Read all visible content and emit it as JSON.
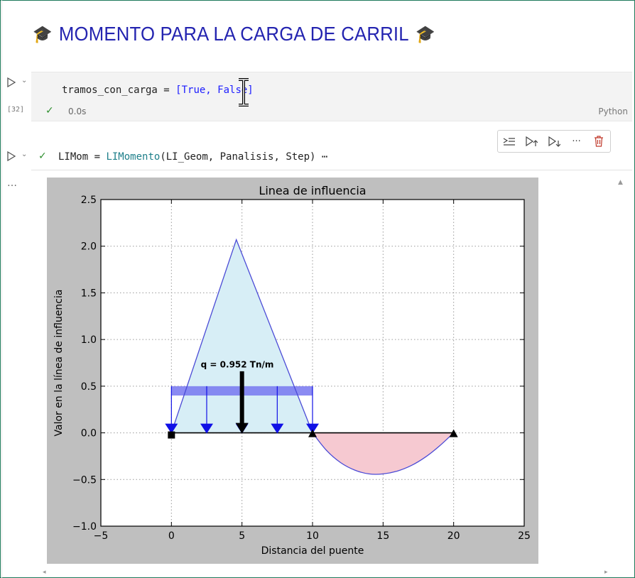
{
  "title": {
    "text": "MOMENTO PARA LA CARGA DE CARRIL",
    "icon": "graduation-cap-icon"
  },
  "cell1": {
    "exec_count": "[32]",
    "code": {
      "var": "tramos_con_carga",
      "op": " = ",
      "value": "[True, False]"
    },
    "status_time": "0.0s",
    "language": "Python"
  },
  "cell2": {
    "code": {
      "var": "LIMom",
      "op": " = ",
      "func": "LIMomento",
      "args": "(LI_Geom, Panalisis, Step)",
      "collapsed": "⋯"
    },
    "output_menu": "…"
  },
  "toolbar": {
    "buttons": [
      "run-by-line",
      "execute-above",
      "execute-below",
      "more",
      "delete"
    ],
    "more_label": "···"
  },
  "chart_data": {
    "type": "line",
    "title": "Linea de influencia",
    "xlabel": "Distancia del puente",
    "ylabel": "Valor en la línea de influencia",
    "xlim": [
      -5,
      25
    ],
    "ylim": [
      -1.0,
      2.5
    ],
    "xticks": [
      "−5",
      "0",
      "5",
      "10",
      "15",
      "20",
      "25"
    ],
    "yticks": [
      "−1.0",
      "−0.5",
      "0.0",
      "0.5",
      "1.0",
      "1.5",
      "2.0",
      "2.5"
    ],
    "grid": true,
    "annotation": "q = 0.952 Tn/m",
    "series": [
      {
        "name": "",
        "x": [
          0,
          4.6,
          10,
          11,
          12,
          13,
          14,
          15,
          16,
          17,
          18,
          19,
          20
        ],
        "values": [
          0.0,
          2.07,
          0.0,
          -0.19,
          -0.32,
          -0.4,
          -0.44,
          -0.44,
          -0.41,
          -0.35,
          -0.26,
          -0.14,
          0.0
        ]
      }
    ],
    "distributed_load": {
      "x_start": 0,
      "x_end": 10,
      "height": 0.5,
      "arrows_x": [
        0,
        2.5,
        5,
        7.5,
        10
      ]
    },
    "supports": [
      {
        "x": 0,
        "kind": "square"
      },
      {
        "x": 10,
        "kind": "triangle"
      },
      {
        "x": 20,
        "kind": "triangle"
      }
    ],
    "colors": {
      "line": "#4b4bd6",
      "positive_fill": "#d7eef6",
      "negative_fill": "#f6c9d1",
      "load_band": "#7777f0",
      "arrows": "#1010e6"
    }
  }
}
